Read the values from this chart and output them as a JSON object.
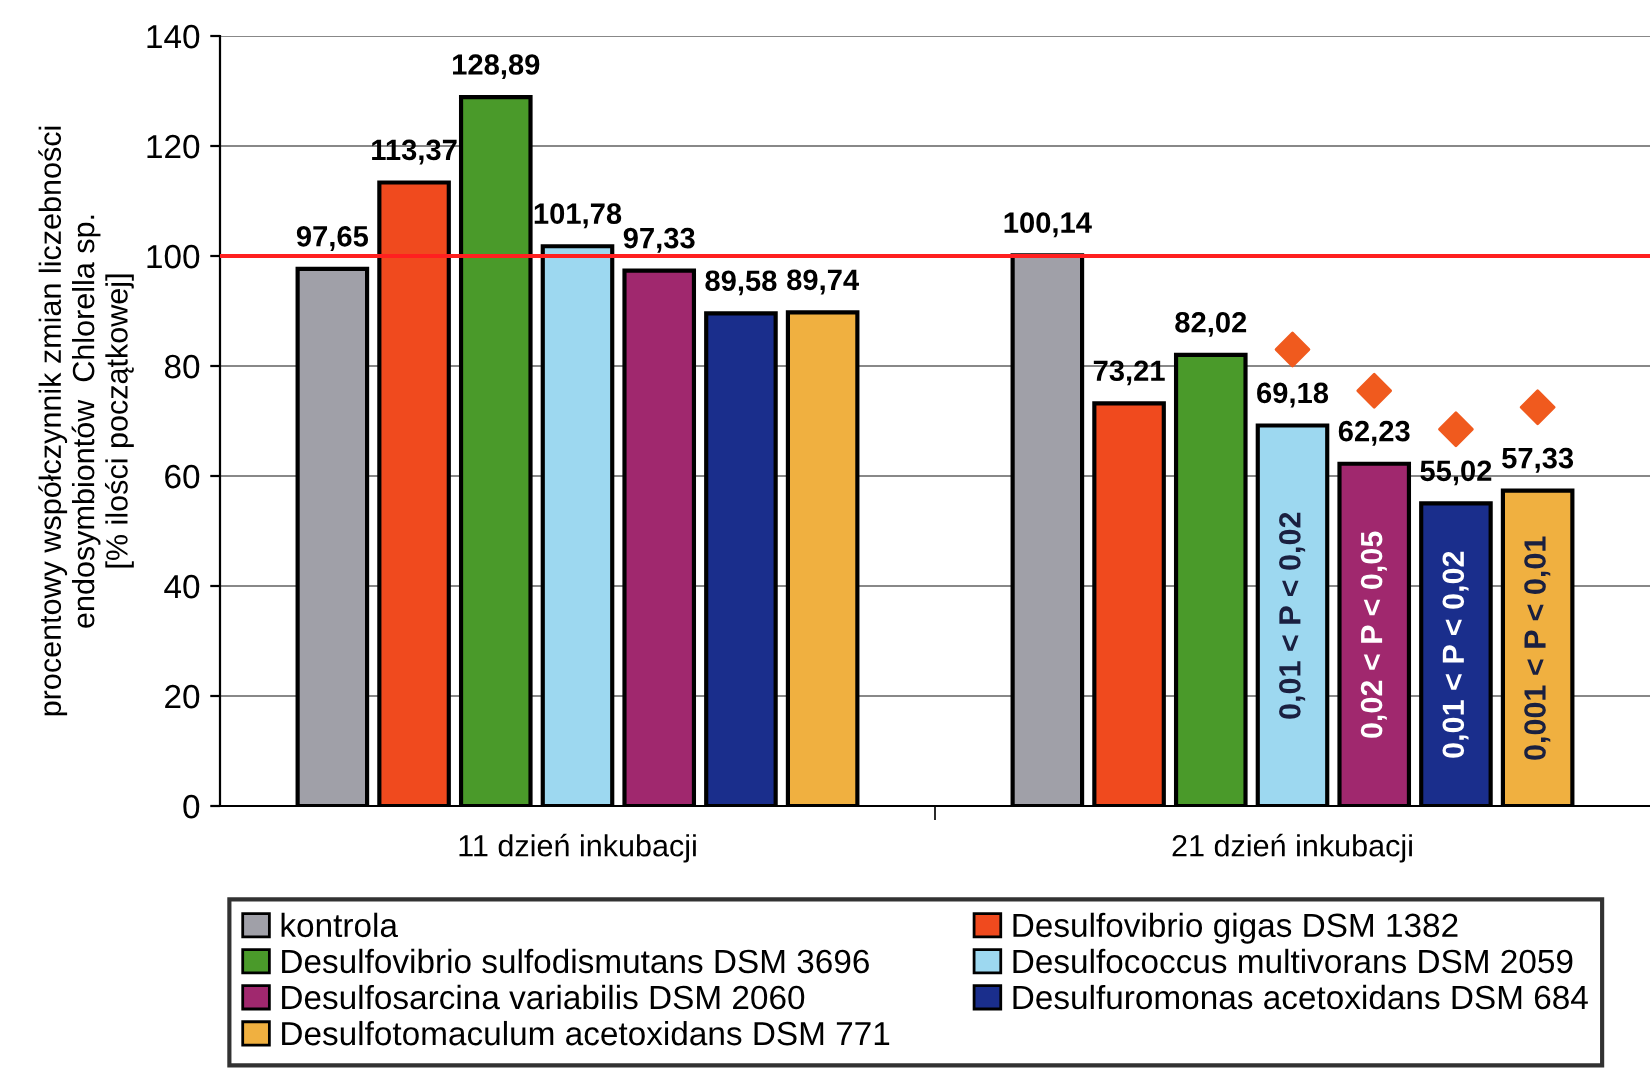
{
  "chart_data": {
    "type": "bar",
    "ylabel": "procentowy współczynnik zmian liczebności\nendosymbiontów  Chlorella sp.\n[% ilości początkowej]",
    "categories": [
      "11 dzień inkubacji",
      "21 dzień inkubacji"
    ],
    "ylim": [
      0,
      140
    ],
    "yticks": [
      0,
      20,
      40,
      60,
      80,
      100,
      120,
      140
    ],
    "grid": "y",
    "legend": "bottom",
    "ref_lines": [
      {
        "axis": "y",
        "value": 100,
        "color": "#ff2020"
      }
    ],
    "series": [
      {
        "name": "kontrola",
        "color": "#a0a0a8",
        "values": [
          97.65,
          100.14
        ],
        "value_labels": [
          "97,65",
          "100,14"
        ]
      },
      {
        "name": "Desulfovibrio gigas DSM 1382",
        "color": "#f04a1e",
        "values": [
          113.37,
          73.21
        ],
        "value_labels": [
          "113,37",
          "73,21"
        ]
      },
      {
        "name": "Desulfovibrio sulfodismutans DSM 3696",
        "color": "#4a9a2a",
        "values": [
          128.89,
          82.02
        ],
        "value_labels": [
          "128,89",
          "82,02"
        ]
      },
      {
        "name": "Desulfococcus multivorans DSM 2059",
        "color": "#9dd8f0",
        "values": [
          101.78,
          69.18
        ],
        "value_labels": [
          "101,78",
          "69,18"
        ]
      },
      {
        "type": "scatter",
        "marker": "diamond",
        "color": "#f05a1e",
        "values": [
          null,
          83
        ]
      },
      {
        "name": "Desulfosarcina variabilis DSM 2060",
        "color": "#a0286e",
        "values": [
          97.33,
          62.23
        ],
        "value_labels": [
          "97,33",
          "62,23"
        ]
      },
      {
        "type": "scatter",
        "marker": "diamond",
        "color": "#f05a1e",
        "values": [
          null,
          75.5
        ]
      },
      {
        "name": "Desulfuromonas acetoxidans DSM 684",
        "color": "#1a2e8c",
        "values": [
          89.58,
          55.02
        ],
        "value_labels": [
          "89,58",
          "55,02"
        ]
      },
      {
        "type": "scatter",
        "marker": "diamond",
        "color": "#f05a1e",
        "values": [
          null,
          68.5
        ]
      },
      {
        "name": "Desulfotomaculum acetoxidans DSM 771",
        "color": "#f0b040",
        "values": [
          89.74,
          57.33
        ],
        "value_labels": [
          "89,74",
          "57,33"
        ]
      },
      {
        "type": "scatter",
        "marker": "diamond",
        "color": "#f05a1e",
        "values": [
          null,
          72.5
        ]
      }
    ],
    "annotations": [
      "0,01 < P < 0,02",
      "0,02 < P < 0,05",
      "0,01 < P < 0,02",
      "0,001 < P < 0,01"
    ]
  }
}
